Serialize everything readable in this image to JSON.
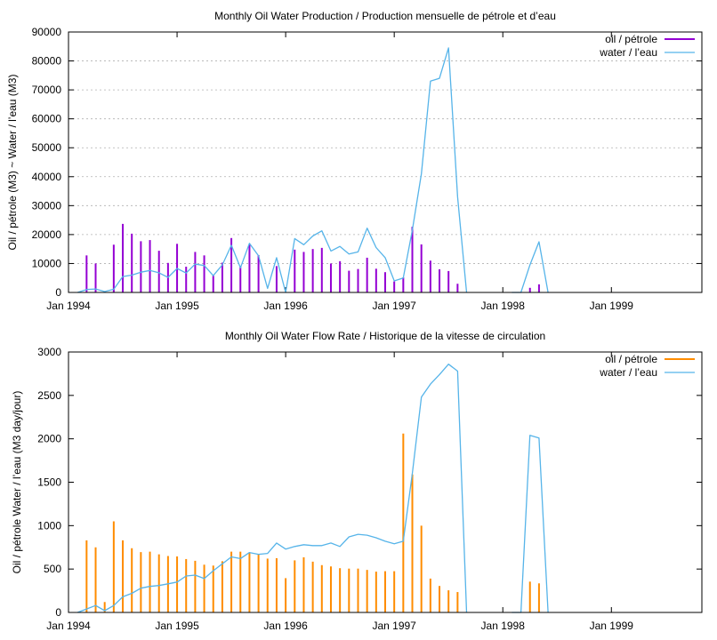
{
  "chart_data": [
    {
      "type": "bar+line",
      "title": "Monthly Oil  Water Production / Production mensuelle de pétrole et d’eau",
      "xlabel": "",
      "ylabel": "Oil / pétrole (M3) ~  Water / l’eau (M3)",
      "ylim": [
        0,
        90000
      ],
      "yticks": [
        0,
        10000,
        20000,
        30000,
        40000,
        50000,
        60000,
        70000,
        80000,
        90000
      ],
      "xlim": [
        "1994-01",
        "1999-11"
      ],
      "xticks": [
        "Jan 1994",
        "Jan 1995",
        "Jan 1996",
        "Jan 1997",
        "Jan 1998",
        "Jan 1999"
      ],
      "grid": "horizontal dashed",
      "legend_position": "top-right",
      "series": [
        {
          "name": "oil / pétrole",
          "style": "impulses",
          "color": "#9400d3",
          "points": [
            [
              "1994-03",
              12800
            ],
            [
              "1994-04",
              10000
            ],
            [
              "1994-06",
              16500
            ],
            [
              "1994-07",
              23700
            ],
            [
              "1994-08",
              20300
            ],
            [
              "1994-09",
              17700
            ],
            [
              "1994-10",
              18100
            ],
            [
              "1994-11",
              14400
            ],
            [
              "1994-12",
              10200
            ],
            [
              "1995-01",
              16800
            ],
            [
              "1995-02",
              8900
            ],
            [
              "1995-03",
              14000
            ],
            [
              "1995-04",
              12800
            ],
            [
              "1995-05",
              5800
            ],
            [
              "1995-06",
              10300
            ],
            [
              "1995-07",
              18800
            ],
            [
              "1995-08",
              9200
            ],
            [
              "1995-09",
              16600
            ],
            [
              "1995-10",
              12900
            ],
            [
              "1995-12",
              9100
            ],
            [
              "1996-02",
              14800
            ],
            [
              "1996-03",
              14000
            ],
            [
              "1996-04",
              15000
            ],
            [
              "1996-05",
              15400
            ],
            [
              "1996-06",
              10000
            ],
            [
              "1996-07",
              10800
            ],
            [
              "1996-08",
              7500
            ],
            [
              "1996-09",
              8100
            ],
            [
              "1996-10",
              12000
            ],
            [
              "1996-11",
              8200
            ],
            [
              "1996-12",
              7000
            ],
            [
              "1997-01",
              3800
            ],
            [
              "1997-02",
              5200
            ],
            [
              "1997-03",
              22700
            ],
            [
              "1997-04",
              16600
            ],
            [
              "1997-05",
              11000
            ],
            [
              "1997-06",
              8000
            ],
            [
              "1997-07",
              7400
            ],
            [
              "1997-08",
              3000
            ],
            [
              "1998-04",
              1600
            ],
            [
              "1998-05",
              2800
            ]
          ]
        },
        {
          "name": "water / l’eau",
          "style": "line",
          "color": "#56b4e9",
          "segments": [
            [
              [
                "1994-02",
                0
              ],
              [
                "1994-03",
                1000
              ],
              [
                "1994-04",
                1200
              ],
              [
                "1994-05",
                300
              ],
              [
                "1994-06",
                1100
              ],
              [
                "1994-07",
                5500
              ],
              [
                "1994-08",
                6000
              ],
              [
                "1994-09",
                7000
              ],
              [
                "1994-10",
                7600
              ],
              [
                "1994-11",
                6800
              ],
              [
                "1994-12",
                5200
              ],
              [
                "1995-01",
                8300
              ],
              [
                "1995-02",
                6700
              ],
              [
                "1995-03",
                9800
              ],
              [
                "1995-04",
                9300
              ],
              [
                "1995-05",
                5800
              ],
              [
                "1995-06",
                9500
              ],
              [
                "1995-07",
                16300
              ],
              [
                "1995-08",
                8500
              ],
              [
                "1995-09",
                17000
              ],
              [
                "1995-10",
                12700
              ],
              [
                "1995-11",
                1400
              ],
              [
                "1995-12",
                12000
              ],
              [
                "1996-01",
                0
              ],
              [
                "1996-02",
                18600
              ],
              [
                "1996-03",
                16500
              ],
              [
                "1996-04",
                19500
              ],
              [
                "1996-05",
                21300
              ],
              [
                "1996-06",
                14300
              ],
              [
                "1996-07",
                15900
              ],
              [
                "1996-08",
                13300
              ],
              [
                "1996-09",
                14000
              ],
              [
                "1996-10",
                22200
              ],
              [
                "1996-11",
                15500
              ],
              [
                "1996-12",
                12000
              ],
              [
                "1997-01",
                4000
              ],
              [
                "1997-02",
                5000
              ],
              [
                "1997-03",
                21500
              ],
              [
                "1997-04",
                41000
              ],
              [
                "1997-05",
                73000
              ],
              [
                "1997-06",
                74000
              ],
              [
                "1997-07",
                84500
              ],
              [
                "1997-08",
                33000
              ],
              [
                "1997-09",
                0
              ]
            ],
            [
              [
                "1998-02",
                0
              ],
              [
                "1998-03",
                0
              ],
              [
                "1998-04",
                9500
              ],
              [
                "1998-05",
                17500
              ],
              [
                "1998-06",
                0
              ]
            ]
          ]
        }
      ]
    },
    {
      "type": "bar+line",
      "title": "Monthly Oil  Water Flow Rate / Historique de la vitesse de circulation",
      "xlabel": "",
      "ylabel": "Oil / pétrole  Water / l’eau (M3 day/jour)",
      "ylim": [
        0,
        3000
      ],
      "yticks": [
        0,
        500,
        1000,
        1500,
        2000,
        2500,
        3000
      ],
      "xlim": [
        "1994-01",
        "1999-11"
      ],
      "xticks": [
        "Jan 1994",
        "Jan 1995",
        "Jan 1996",
        "Jan 1997",
        "Jan 1998",
        "Jan 1999"
      ],
      "grid": "none",
      "legend_position": "top-right",
      "series": [
        {
          "name": "oil / pétrole",
          "style": "impulses",
          "color": "#ff8c00",
          "points": [
            [
              "1994-01",
              0
            ],
            [
              "1994-03",
              830
            ],
            [
              "1994-04",
              750
            ],
            [
              "1994-05",
              120
            ],
            [
              "1994-06",
              1050
            ],
            [
              "1994-07",
              830
            ],
            [
              "1994-08",
              740
            ],
            [
              "1994-09",
              695
            ],
            [
              "1994-10",
              700
            ],
            [
              "1994-11",
              670
            ],
            [
              "1994-12",
              650
            ],
            [
              "1995-01",
              645
            ],
            [
              "1995-02",
              615
            ],
            [
              "1995-03",
              595
            ],
            [
              "1995-04",
              550
            ],
            [
              "1995-05",
              540
            ],
            [
              "1995-06",
              590
            ],
            [
              "1995-07",
              700
            ],
            [
              "1995-08",
              700
            ],
            [
              "1995-09",
              690
            ],
            [
              "1995-10",
              670
            ],
            [
              "1995-11",
              620
            ],
            [
              "1995-12",
              625
            ],
            [
              "1996-01",
              395
            ],
            [
              "1996-02",
              600
            ],
            [
              "1996-03",
              635
            ],
            [
              "1996-04",
              585
            ],
            [
              "1996-05",
              545
            ],
            [
              "1996-06",
              530
            ],
            [
              "1996-07",
              510
            ],
            [
              "1996-08",
              505
            ],
            [
              "1996-09",
              505
            ],
            [
              "1996-10",
              490
            ],
            [
              "1996-11",
              470
            ],
            [
              "1996-12",
              475
            ],
            [
              "1997-01",
              475
            ],
            [
              "1997-02",
              2060
            ],
            [
              "1997-03",
              1590
            ],
            [
              "1997-04",
              1000
            ],
            [
              "1997-05",
              390
            ],
            [
              "1997-06",
              305
            ],
            [
              "1997-07",
              255
            ],
            [
              "1997-08",
              235
            ],
            [
              "1998-04",
              355
            ],
            [
              "1998-05",
              335
            ]
          ]
        },
        {
          "name": "water / l’eau",
          "style": "line",
          "color": "#56b4e9",
          "segments": [
            [
              [
                "1994-02",
                0
              ],
              [
                "1994-03",
                40
              ],
              [
                "1994-04",
                80
              ],
              [
                "1994-05",
                20
              ],
              [
                "1994-06",
                80
              ],
              [
                "1994-07",
                180
              ],
              [
                "1994-08",
                220
              ],
              [
                "1994-09",
                280
              ],
              [
                "1994-10",
                300
              ],
              [
                "1994-11",
                310
              ],
              [
                "1994-12",
                330
              ],
              [
                "1995-01",
                350
              ],
              [
                "1995-02",
                420
              ],
              [
                "1995-03",
                430
              ],
              [
                "1995-04",
                390
              ],
              [
                "1995-05",
                480
              ],
              [
                "1995-06",
                560
              ],
              [
                "1995-07",
                640
              ],
              [
                "1995-08",
                620
              ],
              [
                "1995-09",
                690
              ],
              [
                "1995-10",
                670
              ],
              [
                "1995-11",
                680
              ],
              [
                "1995-12",
                800
              ],
              [
                "1996-01",
                730
              ],
              [
                "1996-02",
                760
              ],
              [
                "1996-03",
                780
              ],
              [
                "1996-04",
                770
              ],
              [
                "1996-05",
                770
              ],
              [
                "1996-06",
                800
              ],
              [
                "1996-07",
                760
              ],
              [
                "1996-08",
                870
              ],
              [
                "1996-09",
                900
              ],
              [
                "1996-10",
                890
              ],
              [
                "1996-11",
                860
              ],
              [
                "1996-12",
                820
              ],
              [
                "1997-01",
                790
              ],
              [
                "1997-02",
                820
              ],
              [
                "1997-03",
                1600
              ],
              [
                "1997-04",
                2480
              ],
              [
                "1997-05",
                2630
              ],
              [
                "1997-06",
                2740
              ],
              [
                "1997-07",
                2860
              ],
              [
                "1997-08",
                2780
              ],
              [
                "1997-09",
                0
              ]
            ],
            [
              [
                "1998-02",
                0
              ],
              [
                "1998-03",
                0
              ],
              [
                "1998-04",
                2040
              ],
              [
                "1998-05",
                2010
              ],
              [
                "1998-06",
                0
              ]
            ]
          ]
        }
      ]
    }
  ]
}
